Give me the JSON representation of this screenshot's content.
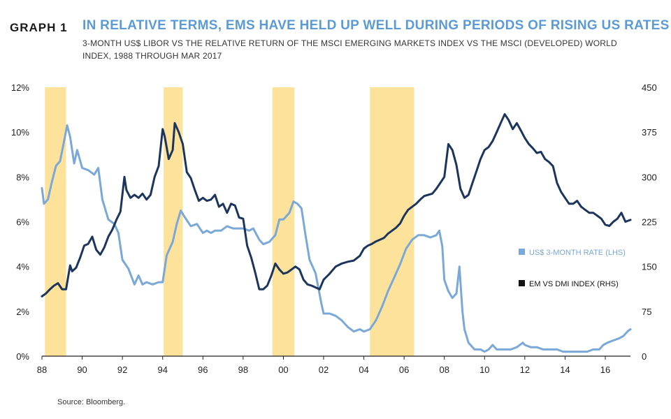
{
  "header": {
    "graph_label": "GRAPH 1",
    "title": "IN RELATIVE TERMS, EMS HAVE HELD UP WELL DURING PERIODS OF RISING US RATES",
    "subtitle": "3-MONTH US$ LIBOR VS THE RELATIVE RETURN OF THE MSCI EMERGING MARKETS INDEX VS THE MSCI (DEVELOPED)  WORLD INDEX, 1988 THROUGH MAR 2017"
  },
  "footer": {
    "source": "Source: Bloomberg."
  },
  "colors": {
    "libor": "#7aa8d8",
    "em_dmi": "#1b355c",
    "shade": "#fde29b"
  },
  "chart_data": {
    "type": "line",
    "x_ticks": [
      "88",
      "90",
      "92",
      "94",
      "96",
      "98",
      "00",
      "02",
      "04",
      "06",
      "08",
      "10",
      "12",
      "14",
      "16"
    ],
    "x_tick_years": [
      1988,
      1990,
      1992,
      1994,
      1996,
      1998,
      2000,
      2002,
      2004,
      2006,
      2008,
      2010,
      2012,
      2014,
      2016
    ],
    "xlim": [
      1988,
      2017.25
    ],
    "y_left": {
      "ticks": [
        "0%",
        "2%",
        "4%",
        "6%",
        "8%",
        "10%",
        "12%"
      ],
      "values": [
        0,
        2,
        4,
        6,
        8,
        10,
        12
      ],
      "lim": [
        0,
        12
      ]
    },
    "y_right": {
      "ticks": [
        "0",
        "75",
        "150",
        "225",
        "300",
        "375",
        "450"
      ],
      "values": [
        0,
        75,
        150,
        225,
        300,
        375,
        450
      ],
      "lim": [
        0,
        450
      ]
    },
    "shaded_periods": [
      [
        1988.15,
        1989.2
      ],
      [
        1994.05,
        1995.0
      ],
      [
        1999.45,
        2000.55
      ],
      [
        2004.3,
        2006.5
      ]
    ],
    "series": [
      {
        "name": "US$ 3-MONTH RATE (LHS)",
        "axis": "left",
        "x": [
          1988.0,
          1988.1,
          1988.3,
          1988.5,
          1988.7,
          1988.9,
          1989.1,
          1989.25,
          1989.4,
          1989.6,
          1989.75,
          1990.0,
          1990.3,
          1990.6,
          1990.8,
          1991.0,
          1991.3,
          1991.6,
          1991.8,
          1992.0,
          1992.3,
          1992.6,
          1992.8,
          1993.0,
          1993.2,
          1993.5,
          1993.8,
          1994.0,
          1994.2,
          1994.5,
          1994.7,
          1994.9,
          1995.1,
          1995.4,
          1995.7,
          1996.0,
          1996.2,
          1996.4,
          1996.6,
          1996.9,
          1997.2,
          1997.5,
          1997.8,
          1998.0,
          1998.3,
          1998.5,
          1998.8,
          1999.0,
          1999.3,
          1999.6,
          1999.8,
          2000.0,
          2000.3,
          2000.5,
          2000.7,
          2000.9,
          2001.1,
          2001.3,
          2001.6,
          2001.9,
          2002.0,
          2002.3,
          2002.6,
          2002.9,
          2003.2,
          2003.5,
          2003.8,
          2004.0,
          2004.3,
          2004.6,
          2004.9,
          2005.2,
          2005.5,
          2005.8,
          2006.1,
          2006.4,
          2006.7,
          2007.0,
          2007.3,
          2007.6,
          2007.75,
          2007.9,
          2008.0,
          2008.2,
          2008.4,
          2008.6,
          2008.75,
          2008.9,
          2009.0,
          2009.2,
          2009.5,
          2009.8,
          2010.0,
          2010.2,
          2010.4,
          2010.6,
          2010.8,
          2011.0,
          2011.3,
          2011.6,
          2011.9,
          2012.0,
          2012.3,
          2012.6,
          2012.9,
          2013.0,
          2013.3,
          2013.6,
          2013.9,
          2014.2,
          2014.5,
          2014.8,
          2015.1,
          2015.4,
          2015.7,
          2015.9,
          2016.1,
          2016.4,
          2016.7,
          2016.9,
          2017.1,
          2017.25
        ],
        "values": [
          7.5,
          6.8,
          7.0,
          7.8,
          8.5,
          8.7,
          9.6,
          10.3,
          9.8,
          8.6,
          9.2,
          8.4,
          8.3,
          8.1,
          8.4,
          7.0,
          6.1,
          5.9,
          5.5,
          4.3,
          3.9,
          3.2,
          3.6,
          3.2,
          3.3,
          3.2,
          3.3,
          3.3,
          4.5,
          5.1,
          5.9,
          6.5,
          6.2,
          5.8,
          5.9,
          5.5,
          5.6,
          5.5,
          5.6,
          5.6,
          5.8,
          5.7,
          5.7,
          5.7,
          5.6,
          5.7,
          5.2,
          5.0,
          5.1,
          5.4,
          6.1,
          6.1,
          6.4,
          6.9,
          6.8,
          6.6,
          5.4,
          4.3,
          3.7,
          2.3,
          1.9,
          1.9,
          1.8,
          1.6,
          1.3,
          1.1,
          1.2,
          1.1,
          1.2,
          1.6,
          2.2,
          2.9,
          3.5,
          4.1,
          4.8,
          5.2,
          5.4,
          5.4,
          5.3,
          5.4,
          5.6,
          4.9,
          3.4,
          2.9,
          2.6,
          2.8,
          4.0,
          2.0,
          1.2,
          0.6,
          0.3,
          0.3,
          0.2,
          0.3,
          0.5,
          0.3,
          0.3,
          0.3,
          0.3,
          0.4,
          0.6,
          0.5,
          0.4,
          0.4,
          0.3,
          0.3,
          0.3,
          0.3,
          0.2,
          0.2,
          0.2,
          0.2,
          0.2,
          0.3,
          0.3,
          0.5,
          0.6,
          0.7,
          0.8,
          0.9,
          1.1,
          1.2
        ]
      },
      {
        "name": "EM VS DMI INDEX (RHS)",
        "axis": "right",
        "x": [
          1988.0,
          1988.2,
          1988.4,
          1988.6,
          1988.8,
          1989.0,
          1989.2,
          1989.4,
          1989.5,
          1989.7,
          1989.9,
          1990.1,
          1990.3,
          1990.5,
          1990.7,
          1990.9,
          1991.1,
          1991.3,
          1991.5,
          1991.7,
          1991.9,
          1992.1,
          1992.2,
          1992.4,
          1992.6,
          1992.8,
          1993.0,
          1993.2,
          1993.4,
          1993.6,
          1993.8,
          1994.0,
          1994.1,
          1994.3,
          1994.5,
          1994.6,
          1994.8,
          1995.0,
          1995.2,
          1995.4,
          1995.6,
          1995.8,
          1996.0,
          1996.2,
          1996.4,
          1996.6,
          1996.8,
          1997.0,
          1997.2,
          1997.4,
          1997.6,
          1997.8,
          1998.0,
          1998.2,
          1998.4,
          1998.6,
          1998.8,
          1999.0,
          1999.2,
          1999.4,
          1999.6,
          1999.8,
          2000.0,
          2000.2,
          2000.4,
          2000.6,
          2000.8,
          2001.0,
          2001.2,
          2001.4,
          2001.6,
          2001.8,
          2002.0,
          2002.3,
          2002.6,
          2002.9,
          2003.2,
          2003.5,
          2003.8,
          2004.0,
          2004.2,
          2004.4,
          2004.6,
          2004.8,
          2005.0,
          2005.2,
          2005.4,
          2005.6,
          2005.8,
          2006.0,
          2006.2,
          2006.4,
          2006.6,
          2006.8,
          2007.0,
          2007.2,
          2007.4,
          2007.6,
          2007.8,
          2008.0,
          2008.2,
          2008.4,
          2008.6,
          2008.8,
          2009.0,
          2009.2,
          2009.4,
          2009.6,
          2009.8,
          2010.0,
          2010.2,
          2010.4,
          2010.6,
          2010.8,
          2011.0,
          2011.2,
          2011.4,
          2011.6,
          2011.8,
          2012.0,
          2012.2,
          2012.4,
          2012.6,
          2012.8,
          2013.0,
          2013.2,
          2013.4,
          2013.6,
          2013.8,
          2014.0,
          2014.2,
          2014.4,
          2014.6,
          2014.8,
          2015.0,
          2015.2,
          2015.4,
          2015.6,
          2015.8,
          2016.0,
          2016.2,
          2016.4,
          2016.6,
          2016.8,
          2017.0,
          2017.25
        ],
        "values": [
          100,
          105,
          112,
          118,
          122,
          112,
          112,
          152,
          142,
          148,
          165,
          185,
          188,
          200,
          178,
          170,
          182,
          200,
          212,
          228,
          242,
          300,
          278,
          265,
          270,
          265,
          272,
          262,
          270,
          300,
          318,
          380,
          368,
          330,
          345,
          390,
          375,
          355,
          308,
          298,
          278,
          260,
          265,
          260,
          262,
          270,
          250,
          255,
          240,
          255,
          252,
          232,
          230,
          185,
          165,
          140,
          112,
          112,
          118,
          135,
          155,
          145,
          138,
          140,
          145,
          150,
          145,
          128,
          120,
          118,
          115,
          112,
          128,
          138,
          150,
          155,
          158,
          160,
          168,
          180,
          185,
          188,
          192,
          195,
          198,
          205,
          210,
          215,
          222,
          235,
          245,
          250,
          255,
          262,
          268,
          270,
          272,
          280,
          290,
          300,
          355,
          345,
          320,
          280,
          265,
          270,
          290,
          310,
          330,
          345,
          350,
          360,
          375,
          390,
          405,
          395,
          380,
          390,
          378,
          365,
          355,
          348,
          340,
          342,
          330,
          325,
          318,
          290,
          275,
          265,
          255,
          255,
          260,
          250,
          245,
          240,
          240,
          235,
          230,
          220,
          218,
          225,
          230,
          240,
          225,
          228
        ]
      }
    ]
  }
}
